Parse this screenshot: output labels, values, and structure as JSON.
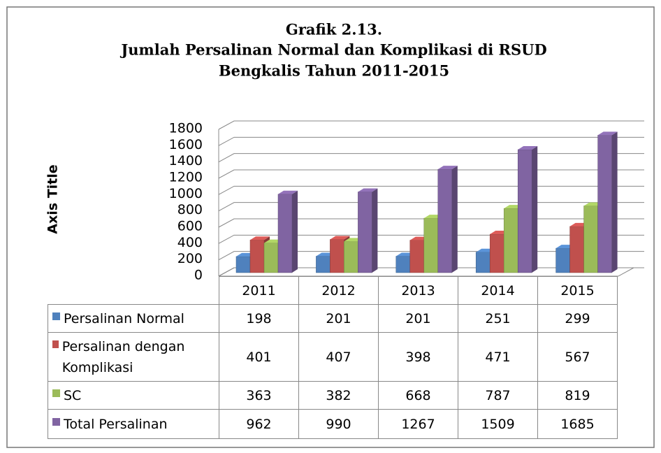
{
  "chart_data": {
    "type": "bar",
    "title": [
      "Grafik 2.13.",
      "Jumlah Persalinan Normal dan Komplikasi di RSUD",
      "Bengkalis Tahun 2011-2015"
    ],
    "y_axis_label": "Axis Title",
    "categories": [
      "2011",
      "2012",
      "2013",
      "2014",
      "2015"
    ],
    "series": [
      {
        "name": "Persalinan Normal",
        "color": "#4f81bd",
        "values": [
          198,
          201,
          201,
          251,
          299
        ]
      },
      {
        "name": "Persalinan dengan Komplikasi",
        "color": "#c0504d",
        "values": [
          401,
          407,
          398,
          471,
          567
        ]
      },
      {
        "name": "SC",
        "color": "#9bbb59",
        "values": [
          363,
          382,
          668,
          787,
          819
        ]
      },
      {
        "name": "Total Persalinan",
        "color": "#8064a2",
        "values": [
          962,
          990,
          1267,
          1509,
          1685
        ]
      }
    ],
    "ylim": [
      0,
      1800
    ],
    "yticks": [
      0,
      200,
      400,
      600,
      800,
      1000,
      1200,
      1400,
      1600,
      1800
    ],
    "grid": true
  }
}
